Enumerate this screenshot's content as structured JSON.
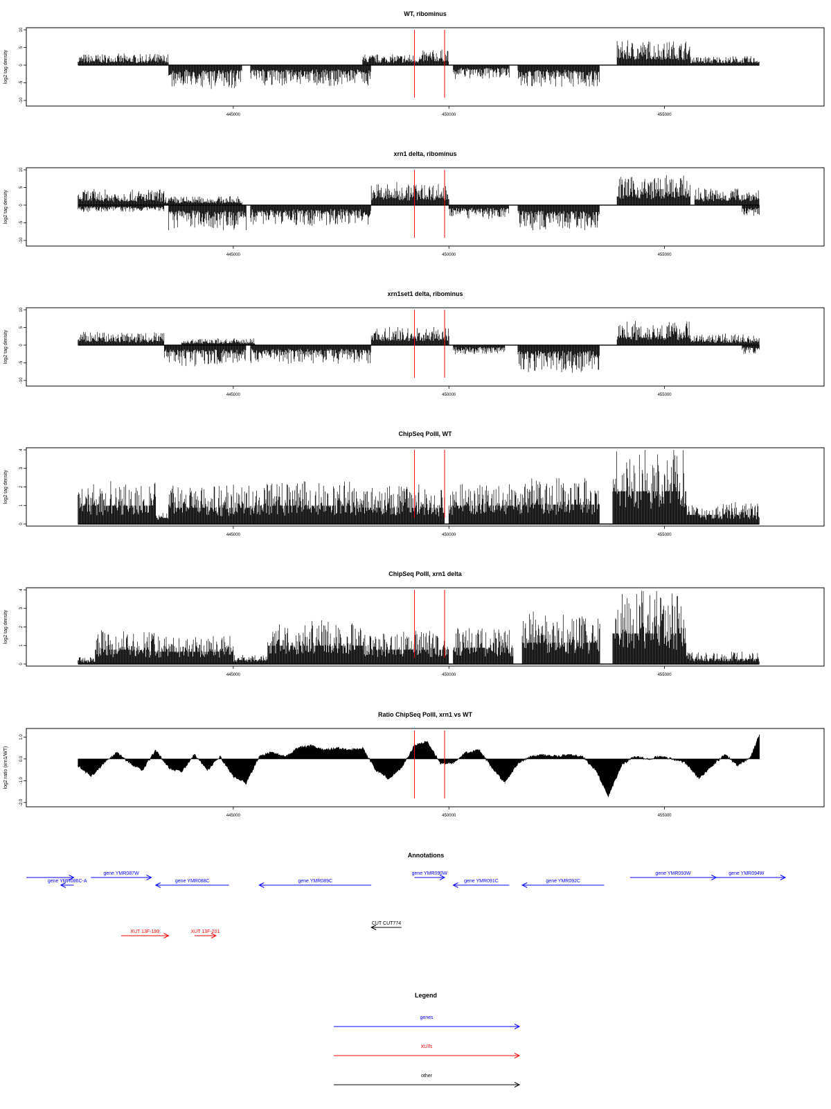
{
  "chart_data": [
    {
      "type": "bar",
      "title": "WT, ribominus",
      "ylabel": "log2 tag density",
      "ylim": [
        -11,
        10
      ],
      "yticks": [
        -10,
        -5,
        0,
        5,
        10
      ],
      "xlim": [
        440200,
        458700
      ],
      "xticks": [
        445000,
        450000,
        455000
      ],
      "xtick_labels": [
        "445000",
        "450000",
        "455000"
      ],
      "markers": [
        449200,
        449900
      ],
      "tracks": {
        "positive": [
          [
            441400,
            443500,
            2.5
          ],
          [
            448000,
            449400,
            2.5
          ],
          [
            449400,
            450000,
            3.5
          ],
          [
            453900,
            455600,
            5.5
          ],
          [
            455600,
            457200,
            2
          ]
        ],
        "negative": [
          [
            443500,
            445200,
            -5
          ],
          [
            445400,
            448200,
            -4.5
          ],
          [
            450100,
            451400,
            -3
          ],
          [
            451600,
            453500,
            -5
          ]
        ]
      }
    },
    {
      "type": "bar",
      "title": "xrn1 delta, ribominus",
      "ylabel": "log2 tag density",
      "ylim": [
        -11,
        10
      ],
      "yticks": [
        -10,
        -5,
        0,
        5,
        10
      ],
      "xlim": [
        440200,
        458700
      ],
      "xticks": [
        445000,
        450000,
        455000
      ],
      "xtick_labels": [
        "445000",
        "450000",
        "455000"
      ],
      "markers": [
        449200,
        449900
      ],
      "tracks": {
        "positive": [
          [
            441400,
            443400,
            3.5
          ],
          [
            443400,
            445200,
            2
          ],
          [
            448200,
            450000,
            5
          ],
          [
            453900,
            455600,
            6.5
          ],
          [
            455700,
            457200,
            4
          ]
        ],
        "negative": [
          [
            441400,
            443400,
            -1.5
          ],
          [
            443500,
            445300,
            -5.5
          ],
          [
            445400,
            448200,
            -4.5
          ],
          [
            450000,
            451400,
            -3
          ],
          [
            451600,
            453500,
            -5.5
          ],
          [
            456800,
            457200,
            -2.5
          ]
        ]
      }
    },
    {
      "type": "bar",
      "title": "xrn1set1 delta, ribominus",
      "ylabel": "log2 tag density",
      "ylim": [
        -11,
        10
      ],
      "yticks": [
        -10,
        -5,
        0,
        5,
        10
      ],
      "xlim": [
        440200,
        458700
      ],
      "xticks": [
        445000,
        450000,
        455000
      ],
      "xtick_labels": [
        "445000",
        "450000",
        "455000"
      ],
      "markers": [
        449200,
        449900
      ],
      "tracks": {
        "positive": [
          [
            441400,
            443400,
            3
          ],
          [
            443800,
            445500,
            1.5
          ],
          [
            448200,
            450000,
            4
          ],
          [
            453900,
            455600,
            5.5
          ],
          [
            455600,
            457200,
            2.5
          ]
        ],
        "negative": [
          [
            443400,
            445300,
            -4.5
          ],
          [
            445400,
            448200,
            -4
          ],
          [
            450100,
            451300,
            -2
          ],
          [
            451600,
            453500,
            -6
          ],
          [
            456800,
            457200,
            -2
          ]
        ]
      }
    },
    {
      "type": "bar",
      "title": "ChipSeq PolII, WT",
      "ylabel": "log2 tag density",
      "ylim": [
        0,
        4
      ],
      "yticks": [
        0,
        1,
        2,
        3,
        4
      ],
      "xlim": [
        440200,
        458700
      ],
      "xticks": [
        445000,
        450000,
        455000
      ],
      "xtick_labels": [
        "445000",
        "450000",
        "455000"
      ],
      "markers": [
        449200,
        449900
      ],
      "tracks": {
        "positive": [
          [
            441400,
            443200,
            1.8
          ],
          [
            443200,
            443500,
            0.6
          ],
          [
            443500,
            445500,
            1.6
          ],
          [
            445500,
            447800,
            1.8
          ],
          [
            447800,
            449900,
            1.6
          ],
          [
            450000,
            451600,
            1.8
          ],
          [
            451600,
            453500,
            1.9
          ],
          [
            453800,
            455500,
            3.2
          ],
          [
            455500,
            457200,
            0.9
          ]
        ],
        "negative": []
      }
    },
    {
      "type": "bar",
      "title": "ChipSeq PolII, xrn1 delta",
      "ylabel": "log2 tag density",
      "ylim": [
        0,
        4
      ],
      "yticks": [
        0,
        1,
        2,
        3,
        4
      ],
      "xlim": [
        440200,
        458700
      ],
      "xticks": [
        445000,
        450000,
        455000
      ],
      "xtick_labels": [
        "445000",
        "450000",
        "455000"
      ],
      "markers": [
        449200,
        449900
      ],
      "tracks": {
        "positive": [
          [
            441400,
            441800,
            0.3
          ],
          [
            441800,
            443200,
            1.4
          ],
          [
            443200,
            445000,
            1.2
          ],
          [
            445000,
            445800,
            0.4
          ],
          [
            445800,
            448000,
            1.8
          ],
          [
            448000,
            450000,
            1.4
          ],
          [
            450100,
            451500,
            1.6
          ],
          [
            451700,
            453500,
            2.1
          ],
          [
            453800,
            455500,
            3.0
          ],
          [
            455500,
            457200,
            0.5
          ]
        ],
        "negative": []
      }
    },
    {
      "type": "area",
      "title": "Ratio ChipSeq PolII, xrn1 vs WT",
      "ylabel": "log2 ratio (xrn1/WT)",
      "ylim": [
        -2.1,
        1.3
      ],
      "yticks": [
        -2.0,
        -1.0,
        0.0,
        1.0
      ],
      "xlim": [
        440200,
        458700
      ],
      "xticks": [
        445000,
        450000,
        455000
      ],
      "xtick_labels": [
        "445000",
        "450000",
        "455000"
      ],
      "markers": [
        449200,
        449900
      ],
      "x": [
        441400,
        441700,
        442000,
        442300,
        442600,
        442900,
        443200,
        443500,
        443800,
        444100,
        444400,
        444700,
        445000,
        445300,
        445600,
        445900,
        446200,
        446500,
        446800,
        447100,
        447400,
        447700,
        448000,
        448300,
        448600,
        448900,
        449200,
        449500,
        449800,
        450100,
        450400,
        450700,
        451000,
        451300,
        451600,
        451900,
        452200,
        452500,
        452800,
        453100,
        453400,
        453700,
        454000,
        454300,
        454600,
        454900,
        455200,
        455500,
        455800,
        456100,
        456400,
        456700,
        457000,
        457200
      ],
      "y": [
        -0.3,
        -0.8,
        -0.2,
        0.3,
        -0.2,
        -0.5,
        0.4,
        -0.4,
        -0.6,
        0.2,
        -0.5,
        0.1,
        -0.8,
        -1.1,
        0.1,
        0.3,
        0.1,
        0.5,
        0.6,
        0.4,
        0.5,
        0.4,
        0.5,
        -0.5,
        -0.9,
        -0.4,
        0.6,
        0.8,
        -0.2,
        -0.2,
        0.3,
        0.4,
        -0.4,
        -1.1,
        -0.2,
        0.1,
        0.2,
        0.1,
        0.2,
        0.1,
        -0.5,
        -1.7,
        -0.3,
        0.1,
        0.0,
        0.1,
        0.0,
        -0.2,
        -0.9,
        -0.3,
        0.2,
        -0.3,
        0.1,
        1.1
      ]
    }
  ],
  "annotations": {
    "title": "Annotations",
    "features": [
      {
        "label": "gene YMR086C-A",
        "start": 440200,
        "end": 441300,
        "strand": "+",
        "kind": "gene",
        "row": 1
      },
      {
        "label": "gene YMR086C-A",
        "start": 441000,
        "end": 441300,
        "strand": "-",
        "kind": "gene",
        "row": 2
      },
      {
        "label": "gene YMR087W",
        "start": 441700,
        "end": 443100,
        "strand": "+",
        "kind": "gene",
        "row": 1
      },
      {
        "label": "gene YMR088C",
        "start": 443200,
        "end": 444900,
        "strand": "-",
        "kind": "gene",
        "row": 2
      },
      {
        "label": "gene YMR089C",
        "start": 445600,
        "end": 448200,
        "strand": "-",
        "kind": "gene",
        "row": 2
      },
      {
        "label": "gene YMR090W",
        "start": 449200,
        "end": 449900,
        "strand": "+",
        "kind": "gene",
        "row": 1
      },
      {
        "label": "gene YMR091C",
        "start": 450100,
        "end": 451400,
        "strand": "-",
        "kind": "gene",
        "row": 2
      },
      {
        "label": "gene YMR092C",
        "start": 451700,
        "end": 453600,
        "strand": "-",
        "kind": "gene",
        "row": 2
      },
      {
        "label": "gene YMR093W",
        "start": 454200,
        "end": 456200,
        "strand": "+",
        "kind": "gene",
        "row": 1
      },
      {
        "label": "gene YMR094W",
        "start": 456000,
        "end": 457800,
        "strand": "+",
        "kind": "gene",
        "row": 1
      },
      {
        "label": "CUT CUT774",
        "start": 448200,
        "end": 448900,
        "strand": "-",
        "kind": "other",
        "row": 4
      },
      {
        "label": "XUT 13F-199",
        "start": 442400,
        "end": 443500,
        "strand": "+",
        "kind": "xut",
        "row": 5
      },
      {
        "label": "XUT 13F-201",
        "start": 444100,
        "end": 444600,
        "strand": "+",
        "kind": "xut",
        "row": 5
      }
    ]
  },
  "legend": {
    "title": "Legend",
    "items": [
      {
        "label": "genes",
        "color": "#0000ff"
      },
      {
        "label": "XUTs",
        "color": "#ff0000"
      },
      {
        "label": "other",
        "color": "#000000"
      }
    ]
  },
  "colors": {
    "marker": "#ff0000",
    "gene": "#0000ff",
    "xut": "#ff0000",
    "other": "#000000",
    "data": "#000000"
  }
}
